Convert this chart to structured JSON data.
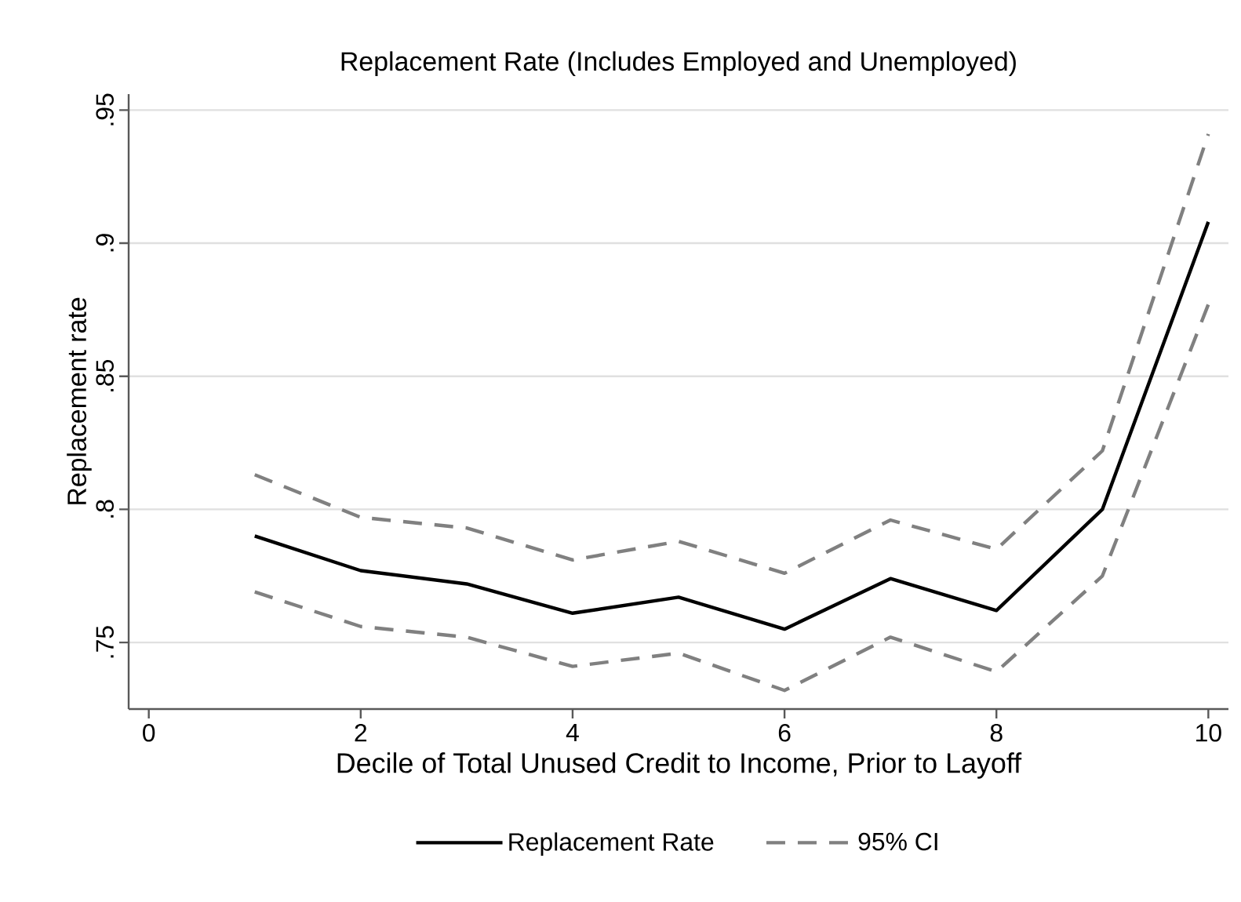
{
  "chart_data": {
    "type": "line",
    "title": "Replacement Rate (Includes Employed and Unemployed)",
    "xlabel": "Decile of Total Unused Credit to Income, Prior to Layoff",
    "ylabel": "Replacement rate",
    "x": [
      1,
      2,
      3,
      4,
      5,
      6,
      7,
      8,
      9,
      10
    ],
    "series": [
      {
        "name": "Replacement Rate",
        "color": "#000000",
        "line_style": "solid",
        "values": [
          0.79,
          0.777,
          0.772,
          0.761,
          0.767,
          0.755,
          0.774,
          0.762,
          0.8,
          0.908
        ]
      },
      {
        "name": "95% CI",
        "color": "#808080",
        "line_style": "dashed",
        "values": [
          0.813,
          0.797,
          0.793,
          0.781,
          0.788,
          0.776,
          0.796,
          0.785,
          0.822,
          0.941
        ]
      },
      {
        "color": "#808080",
        "line_style": "dashed",
        "values": [
          0.769,
          0.756,
          0.752,
          0.741,
          0.746,
          0.732,
          0.752,
          0.739,
          0.775,
          0.877
        ]
      }
    ],
    "xlim": [
      -0.19,
      10.19
    ],
    "xticks": [
      0,
      2,
      4,
      6,
      8,
      10
    ],
    "ylim": [
      0.725,
      0.956
    ],
    "yticks": [
      {
        "value": 0.75,
        "label": ".75"
      },
      {
        "value": 0.8,
        "label": ".8"
      },
      {
        "value": 0.85,
        "label": ".85"
      },
      {
        "value": 0.9,
        "label": ".9"
      },
      {
        "value": 0.95,
        "label": ".95"
      }
    ],
    "grid": "y",
    "legend": "bottom",
    "marker": "none"
  }
}
